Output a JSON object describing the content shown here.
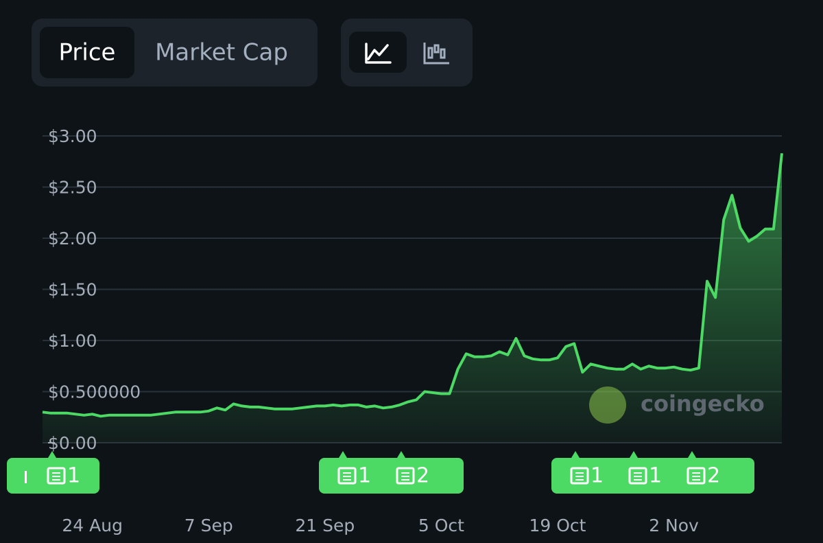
{
  "controls": {
    "tabs": [
      "Price",
      "Market Cap"
    ]
  },
  "watermark": "coingecko",
  "chart_data": {
    "type": "line",
    "x": [
      0,
      1,
      2,
      3,
      4,
      5,
      6,
      7,
      8,
      9,
      10,
      11,
      12,
      13,
      14,
      15,
      16,
      17,
      18,
      19,
      20,
      21,
      22,
      23,
      24,
      25,
      26,
      27,
      28,
      29,
      30,
      31,
      32,
      33,
      34,
      35,
      36,
      37,
      38,
      39,
      40,
      41,
      42,
      43,
      44,
      45,
      46,
      47,
      48,
      49,
      50,
      51,
      52,
      53,
      54,
      55,
      56,
      57,
      58,
      59,
      60,
      61,
      62,
      63,
      64,
      65,
      66,
      67,
      68,
      69,
      70,
      71,
      72,
      73,
      74,
      75,
      76,
      77,
      78,
      79,
      80,
      81,
      82,
      83,
      84,
      85,
      86,
      87,
      88,
      89
    ],
    "series": [
      {
        "color": "#4cd964",
        "values": [
          0.3,
          0.29,
          0.29,
          0.29,
          0.28,
          0.27,
          0.28,
          0.26,
          0.27,
          0.27,
          0.27,
          0.27,
          0.27,
          0.27,
          0.28,
          0.29,
          0.3,
          0.3,
          0.3,
          0.3,
          0.31,
          0.34,
          0.32,
          0.38,
          0.36,
          0.35,
          0.35,
          0.34,
          0.33,
          0.33,
          0.33,
          0.34,
          0.35,
          0.36,
          0.36,
          0.37,
          0.36,
          0.37,
          0.37,
          0.35,
          0.36,
          0.34,
          0.35,
          0.37,
          0.4,
          0.42,
          0.5,
          0.49,
          0.48,
          0.48,
          0.72,
          0.87,
          0.84,
          0.84,
          0.85,
          0.89,
          0.86,
          1.02,
          0.85,
          0.82,
          0.81,
          0.81,
          0.83,
          0.94,
          0.97,
          0.69,
          0.77,
          0.75,
          0.73,
          0.72,
          0.72,
          0.77,
          0.72,
          0.75,
          0.73,
          0.73,
          0.74,
          0.72,
          0.71,
          0.73,
          1.58,
          1.42,
          2.18,
          2.42,
          2.1,
          1.97,
          2.02,
          2.09,
          2.09,
          2.83
        ]
      }
    ],
    "xlim": [
      0,
      89
    ],
    "xticks": [
      {
        "value": 6,
        "label": "24 Aug"
      },
      {
        "value": 20,
        "label": "7 Sep"
      },
      {
        "value": 34,
        "label": "21 Sep"
      },
      {
        "value": 48,
        "label": "5 Oct"
      },
      {
        "value": 62,
        "label": "19 Oct"
      },
      {
        "value": 76,
        "label": "2 Nov"
      }
    ],
    "ylim": [
      0,
      3
    ],
    "yticks": [
      {
        "value": 0,
        "label": "$0.00"
      },
      {
        "value": 0.5,
        "label": "$0.500000"
      },
      {
        "value": 1,
        "label": "$1.00"
      },
      {
        "value": 1.5,
        "label": "$1.50"
      },
      {
        "value": 2,
        "label": "$2.00"
      },
      {
        "value": 2.5,
        "label": "$2.50"
      },
      {
        "value": 3,
        "label": "$3.00"
      }
    ],
    "grid": true,
    "news_badges": [
      [
        "1"
      ],
      [
        "1",
        "2"
      ],
      [
        "1",
        "1",
        "2"
      ]
    ]
  }
}
